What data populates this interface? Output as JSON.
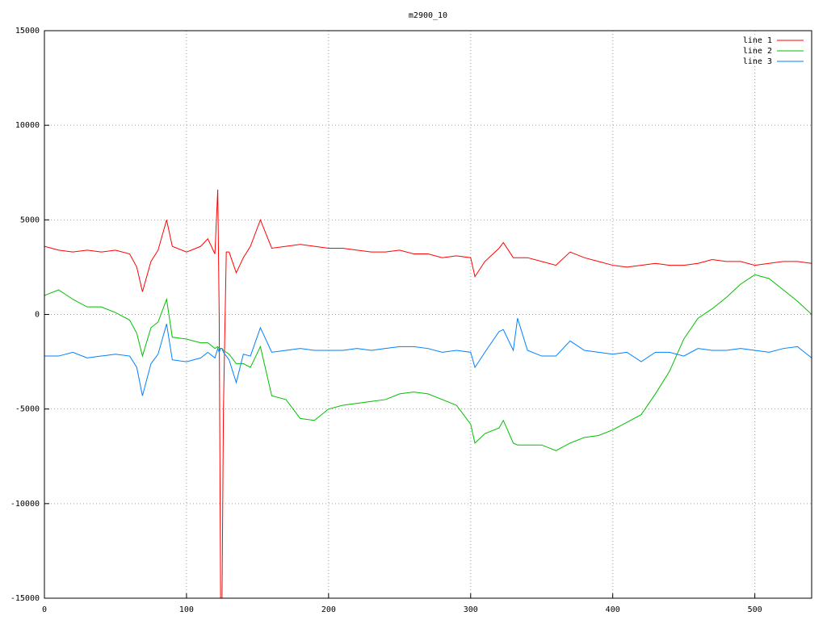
{
  "chart_data": {
    "type": "line",
    "title": "m2900_10",
    "x": [
      0,
      10,
      20,
      30,
      40,
      50,
      60,
      65,
      69,
      75,
      80,
      86,
      90,
      100,
      110,
      115,
      120,
      122,
      123,
      124,
      125,
      126,
      128,
      130,
      135,
      140,
      145,
      152,
      160,
      170,
      180,
      190,
      200,
      210,
      220,
      230,
      240,
      250,
      260,
      270,
      280,
      290,
      300,
      303,
      310,
      320,
      323,
      330,
      333,
      340,
      350,
      360,
      370,
      380,
      390,
      400,
      410,
      420,
      430,
      440,
      450,
      460,
      470,
      480,
      490,
      500,
      510,
      520,
      530,
      540
    ],
    "series": [
      {
        "name": "line 1",
        "color": "#ff0000",
        "values": [
          3600,
          3400,
          3300,
          3400,
          3300,
          3400,
          3200,
          2500,
          1200,
          2800,
          3400,
          5000,
          3600,
          3300,
          3600,
          4000,
          3200,
          6600,
          0,
          -15000,
          -15000,
          -5000,
          3300,
          3300,
          2200,
          3000,
          3600,
          5000,
          3500,
          3600,
          3700,
          3600,
          3500,
          3500,
          3400,
          3300,
          3300,
          3400,
          3200,
          3200,
          3000,
          3100,
          3000,
          2000,
          2800,
          3500,
          3800,
          3000,
          3000,
          3000,
          2800,
          2600,
          3300,
          3000,
          2800,
          2600,
          2500,
          2600,
          2700,
          2600,
          2600,
          2700,
          2900,
          2800,
          2800,
          2600,
          2700,
          2800,
          2800,
          2700
        ]
      },
      {
        "name": "line 2",
        "color": "#00c000",
        "values": [
          1000,
          1300,
          800,
          400,
          400,
          100,
          -300,
          -1000,
          -2200,
          -700,
          -400,
          800,
          -1200,
          -1300,
          -1500,
          -1500,
          -1800,
          -1700,
          -1800,
          -1800,
          -1800,
          -1900,
          -2000,
          -2100,
          -2600,
          -2600,
          -2800,
          -1700,
          -4300,
          -4500,
          -5500,
          -5600,
          -5000,
          -4800,
          -4700,
          -4600,
          -4500,
          -4200,
          -4100,
          -4200,
          -4500,
          -4800,
          -5800,
          -6800,
          -6300,
          -6000,
          -5600,
          -6800,
          -6900,
          -6900,
          -6900,
          -7200,
          -6800,
          -6500,
          -6400,
          -6100,
          -5700,
          -5300,
          -4200,
          -3000,
          -1300,
          -200,
          300,
          900,
          1600,
          2100,
          1900,
          1300,
          700,
          0
        ]
      },
      {
        "name": "line 3",
        "color": "#0080ff",
        "values": [
          -2200,
          -2200,
          -2000,
          -2300,
          -2200,
          -2100,
          -2200,
          -2800,
          -4300,
          -2600,
          -2100,
          -500,
          -2400,
          -2500,
          -2300,
          -2000,
          -2300,
          -1800,
          -2000,
          -1800,
          -1800,
          -2000,
          -2200,
          -2400,
          -3600,
          -2100,
          -2200,
          -700,
          -2000,
          -1900,
          -1800,
          -1900,
          -1900,
          -1900,
          -1800,
          -1900,
          -1800,
          -1700,
          -1700,
          -1800,
          -2000,
          -1900,
          -2000,
          -2800,
          -2000,
          -900,
          -800,
          -1900,
          -200,
          -1900,
          -2200,
          -2200,
          -1400,
          -1900,
          -2000,
          -2100,
          -2000,
          -2500,
          -2000,
          -2000,
          -2200,
          -1800,
          -1900,
          -1900,
          -1800,
          -1900,
          -2000,
          -1800,
          -1700,
          -2300
        ]
      }
    ],
    "xlim": [
      0,
      540
    ],
    "xticks": [
      0,
      100,
      200,
      300,
      400,
      500
    ],
    "ylim": [
      -15000,
      15000
    ],
    "yticks": [
      -15000,
      -10000,
      -5000,
      0,
      5000,
      10000,
      15000
    ],
    "grid": true,
    "legend": "top-right"
  }
}
